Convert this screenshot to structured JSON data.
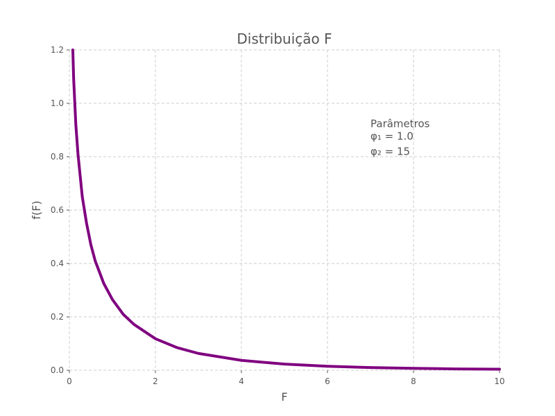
{
  "chart_data": {
    "type": "line",
    "title": "Distribuição F",
    "xlabel": "F",
    "ylabel": "f(F)",
    "xlim": [
      0,
      10
    ],
    "ylim": [
      0,
      1.2
    ],
    "x_ticks": [
      "0",
      "2",
      "4",
      "6",
      "8",
      "10"
    ],
    "y_ticks": [
      "0.0",
      "0.2",
      "0.4",
      "0.6",
      "0.8",
      "1.0",
      "1.2"
    ],
    "grid": true,
    "series": [
      {
        "color": "#800080",
        "x": [
          0.08,
          0.1,
          0.15,
          0.2,
          0.3,
          0.4,
          0.5,
          0.6,
          0.8,
          1.0,
          1.25,
          1.5,
          2.0,
          2.5,
          3.0,
          4.0,
          5.0,
          6.0,
          7.0,
          8.0,
          9.0,
          10.0
        ],
        "y": [
          1.2,
          1.09,
          0.92,
          0.81,
          0.65,
          0.55,
          0.47,
          0.41,
          0.325,
          0.265,
          0.21,
          0.172,
          0.118,
          0.085,
          0.063,
          0.037,
          0.023,
          0.015,
          0.01,
          0.007,
          0.005,
          0.004
        ]
      }
    ],
    "annotation": {
      "heading": "Parâmetros",
      "line1": "φ₁ = 1.0",
      "line2": "φ₂ = 15",
      "x": 7.0,
      "y": 0.9
    }
  }
}
